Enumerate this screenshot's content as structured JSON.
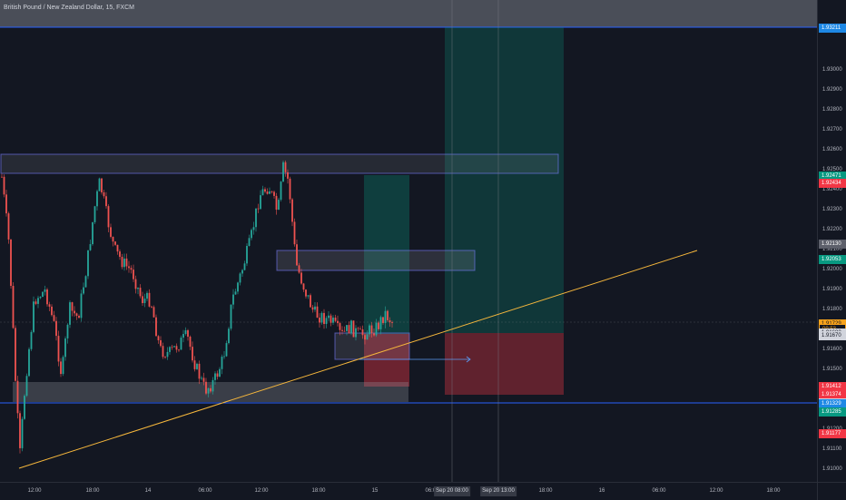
{
  "chart": {
    "title": "British Pound / New Zealand Dollar, 15, FXCM"
  },
  "price_axis": {
    "labels": [
      "1.93000",
      "1.92900",
      "1.92800",
      "1.92700",
      "1.92600",
      "1.92500",
      "1.92400",
      "1.92300",
      "1.92200",
      "1.92100",
      "1.92000",
      "1.91900",
      "1.91800",
      "1.91600",
      "1.91500",
      "1.91400",
      "1.91300",
      "1.91200",
      "1.91100",
      "1.91000"
    ],
    "tags": [
      {
        "text": "1.93211",
        "color": "#1e88e5",
        "fg": "#ffffff",
        "price": 1.93211
      },
      {
        "text": "1.92471",
        "color": "#089981",
        "fg": "#ffffff",
        "price": 1.92471
      },
      {
        "text": "1.92434",
        "color": "#f23645",
        "fg": "#ffffff",
        "price": 1.92434
      },
      {
        "text": "1.92130",
        "color": "#5d606b",
        "fg": "#ffffff",
        "price": 1.9213
      },
      {
        "text": "1.92053",
        "color": "#089981",
        "fg": "#ffffff",
        "price": 1.92053
      },
      {
        "text": "1.91729",
        "color": "#f7a21b",
        "fg": "#131722",
        "price": 1.91729
      },
      {
        "text": "09:53",
        "color": "#131722",
        "fg": "#f7a21b",
        "price": 1.91705
      },
      {
        "text": "1.91683",
        "color": "#d1d4dc",
        "fg": "#131722",
        "price": 1.91683
      },
      {
        "text": "1.91670",
        "color": "#d1d4dc",
        "fg": "#131722",
        "price": 1.9167
      },
      {
        "text": "1.91412",
        "color": "#f23645",
        "fg": "#ffffff",
        "price": 1.91412
      },
      {
        "text": "1.91374",
        "color": "#f23645",
        "fg": "#ffffff",
        "price": 1.91374
      },
      {
        "text": "1.91333",
        "color": "#d1d4dc",
        "fg": "#131722",
        "price": 1.91333
      },
      {
        "text": "1.91329",
        "color": "#1e88e5",
        "fg": "#ffffff",
        "price": 1.91329
      },
      {
        "text": "1.91285",
        "color": "#089981",
        "fg": "#ffffff",
        "price": 1.91285
      },
      {
        "text": "1.91177",
        "color": "#f23645",
        "fg": "#ffffff",
        "price": 1.91177
      }
    ]
  },
  "time_axis": {
    "labels": [
      "12:00",
      "18:00",
      "14",
      "06:00",
      "12:00",
      "18:00",
      "15",
      "06:00",
      "12:00",
      "18:00",
      "16",
      "06:00",
      "12:00",
      "18:00"
    ],
    "cursor_labels": [
      "Sep 20  08:00",
      "Sep 20  13:00"
    ]
  },
  "colors": {
    "background": "#131722",
    "up": "#26a69a",
    "down": "#ef5350",
    "trendline": "#f6b73c",
    "level_line": "#2962ff",
    "long_target": "#089981",
    "long_stop": "#f23645",
    "zone": "#b2b5be"
  }
}
